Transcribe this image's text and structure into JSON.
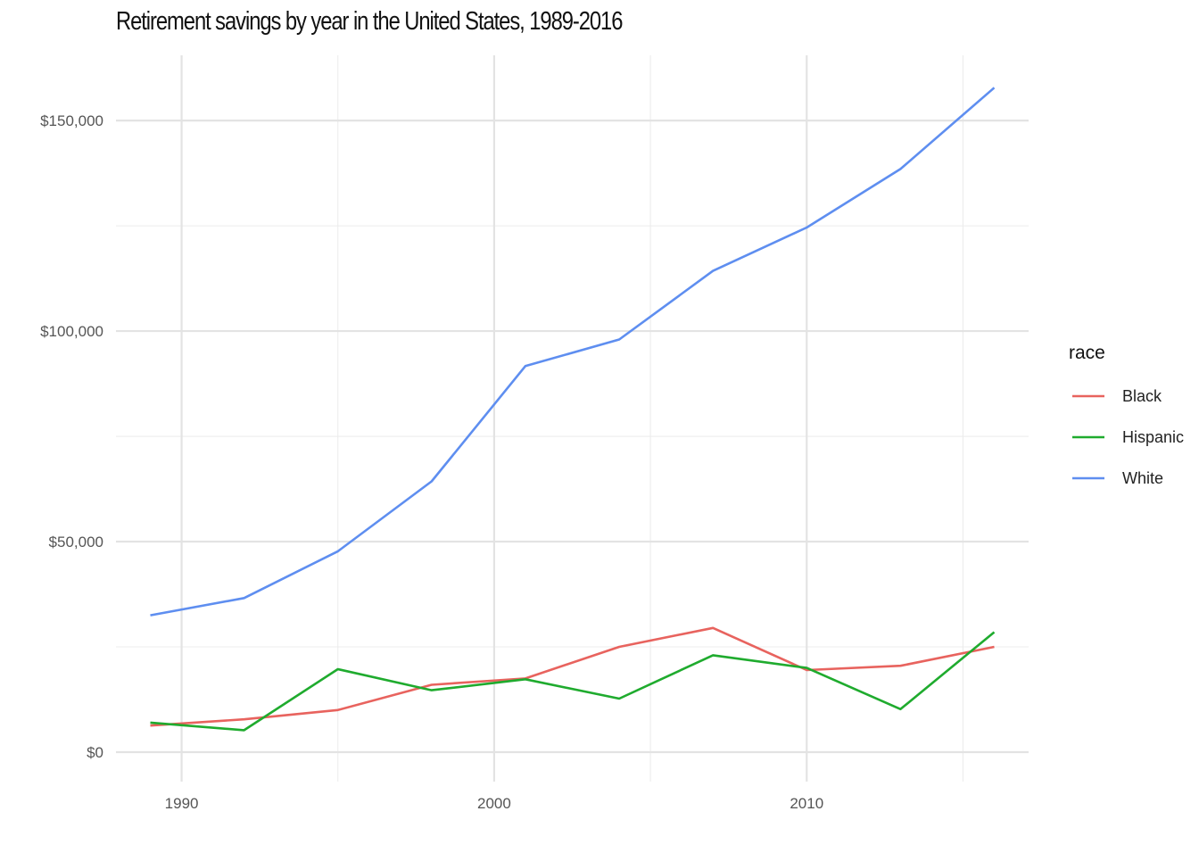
{
  "chart_data": {
    "type": "line",
    "title": "Retirement savings by year in the United States, 1989-2016",
    "xlabel": "",
    "ylabel": "",
    "x": [
      1989,
      1992,
      1995,
      1998,
      2001,
      2004,
      2007,
      2010,
      2013,
      2016
    ],
    "xlim": [
      1987.9,
      2017.1
    ],
    "ylim": [
      -7000,
      165500
    ],
    "x_ticks": [
      {
        "value": 1990,
        "label": "1990"
      },
      {
        "value": 2000,
        "label": "2000"
      },
      {
        "value": 2010,
        "label": "2010"
      }
    ],
    "y_ticks": [
      {
        "value": 0,
        "label": "$0"
      },
      {
        "value": 50000,
        "label": "$50,000"
      },
      {
        "value": 100000,
        "label": "$100,000"
      },
      {
        "value": 150000,
        "label": "$150,000"
      }
    ],
    "x_minor_ticks": [
      1995,
      2005,
      2015
    ],
    "y_minor_ticks": [
      25000,
      75000,
      125000
    ],
    "grid": true,
    "legend": {
      "title": "race",
      "placement": "right"
    },
    "series": [
      {
        "name": "Black",
        "color": "#e8635e",
        "values": [
          6300,
          7800,
          10000,
          16000,
          17500,
          25000,
          29500,
          19500,
          20500,
          25000
        ]
      },
      {
        "name": "Hispanic",
        "color": "#1fab2e",
        "values": [
          7000,
          5200,
          19700,
          14700,
          17300,
          12700,
          23000,
          20000,
          10200,
          28500
        ]
      },
      {
        "name": "White",
        "color": "#5e8ef0",
        "values": [
          32500,
          36600,
          47700,
          64300,
          91700,
          98000,
          114300,
          124600,
          138500,
          157800
        ]
      }
    ]
  }
}
